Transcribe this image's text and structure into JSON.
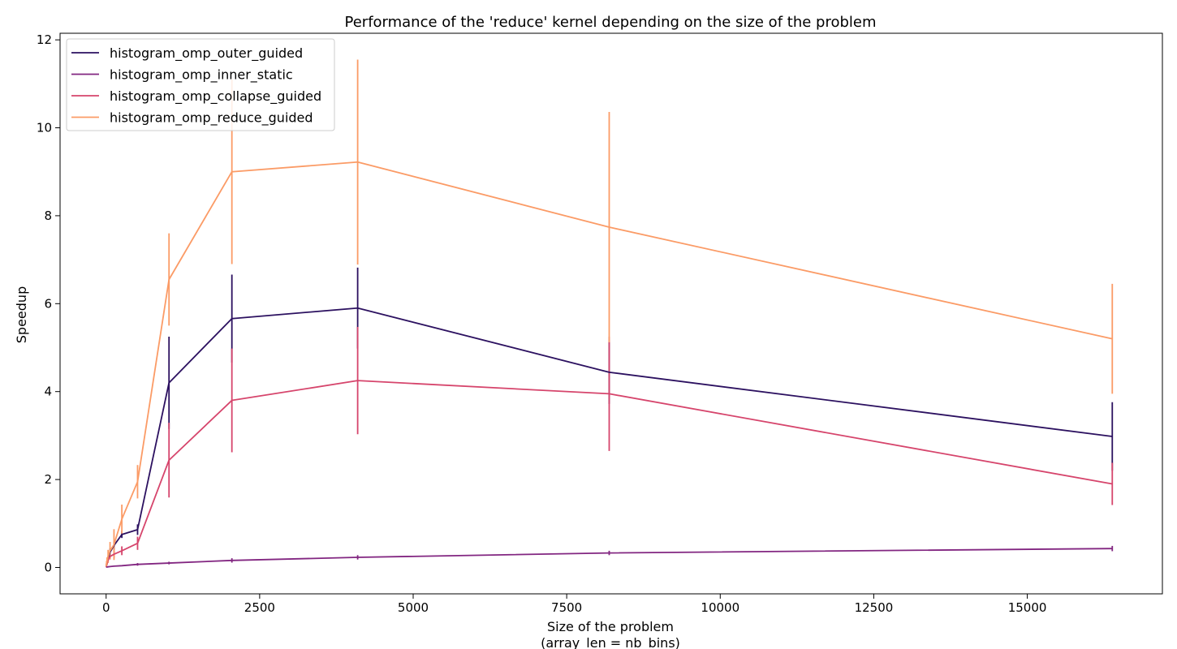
{
  "chart_data": {
    "type": "line",
    "title": "Performance of the 'reduce' kernel depending on the size of the problem",
    "xlabel_lines": [
      "Size of the problem",
      "(array_len = nb_bins)"
    ],
    "ylabel": "Speedup",
    "xlim": [
      -750,
      17200
    ],
    "ylim": [
      -0.6,
      12.15
    ],
    "xticks": [
      0,
      2500,
      5000,
      7500,
      10000,
      12500,
      15000
    ],
    "yticks": [
      0,
      2,
      4,
      6,
      8,
      10,
      12
    ],
    "grid": false,
    "legend_position": "top-left",
    "x": [
      2,
      4,
      8,
      16,
      32,
      64,
      128,
      256,
      512,
      1024,
      2048,
      4096,
      8192,
      16384
    ],
    "series": [
      {
        "name": "histogram_omp_outer_guided",
        "color": "#2c1160",
        "y": [
          0.02,
          0.04,
          0.07,
          0.12,
          0.2,
          0.35,
          0.5,
          0.75,
          0.86,
          4.2,
          5.66,
          5.9,
          4.44,
          2.98
        ],
        "err": [
          0.01,
          0.01,
          0.02,
          0.03,
          0.05,
          0.08,
          0.1,
          0.08,
          0.12,
          1.05,
          1.0,
          0.92,
          0.72,
          0.78
        ]
      },
      {
        "name": "histogram_omp_inner_static",
        "color": "#822681",
        "y": [
          0.01,
          0.01,
          0.01,
          0.01,
          0.015,
          0.02,
          0.03,
          0.04,
          0.07,
          0.1,
          0.16,
          0.23,
          0.33,
          0.43
        ],
        "err": [
          0.003,
          0.003,
          0.003,
          0.004,
          0.005,
          0.006,
          0.008,
          0.01,
          0.03,
          0.03,
          0.05,
          0.05,
          0.05,
          0.06
        ]
      },
      {
        "name": "histogram_omp_collapse_guided",
        "color": "#d6456c",
        "y": [
          0.02,
          0.03,
          0.06,
          0.1,
          0.17,
          0.25,
          0.3,
          0.38,
          0.55,
          2.44,
          3.8,
          4.25,
          3.95,
          1.9
        ],
        "err": [
          0.01,
          0.01,
          0.02,
          0.03,
          0.04,
          0.06,
          0.08,
          0.1,
          0.15,
          0.85,
          1.18,
          1.22,
          1.3,
          0.48
        ]
      },
      {
        "name": "histogram_omp_reduce_guided",
        "color": "#fb9b66",
        "y": [
          0.03,
          0.06,
          0.1,
          0.15,
          0.25,
          0.38,
          0.52,
          1.1,
          1.95,
          6.55,
          9.0,
          9.22,
          7.74,
          5.2
        ],
        "err": [
          0.02,
          0.03,
          0.05,
          0.08,
          0.15,
          0.2,
          0.35,
          0.33,
          0.38,
          1.05,
          2.1,
          2.33,
          2.62,
          1.25
        ]
      }
    ]
  }
}
